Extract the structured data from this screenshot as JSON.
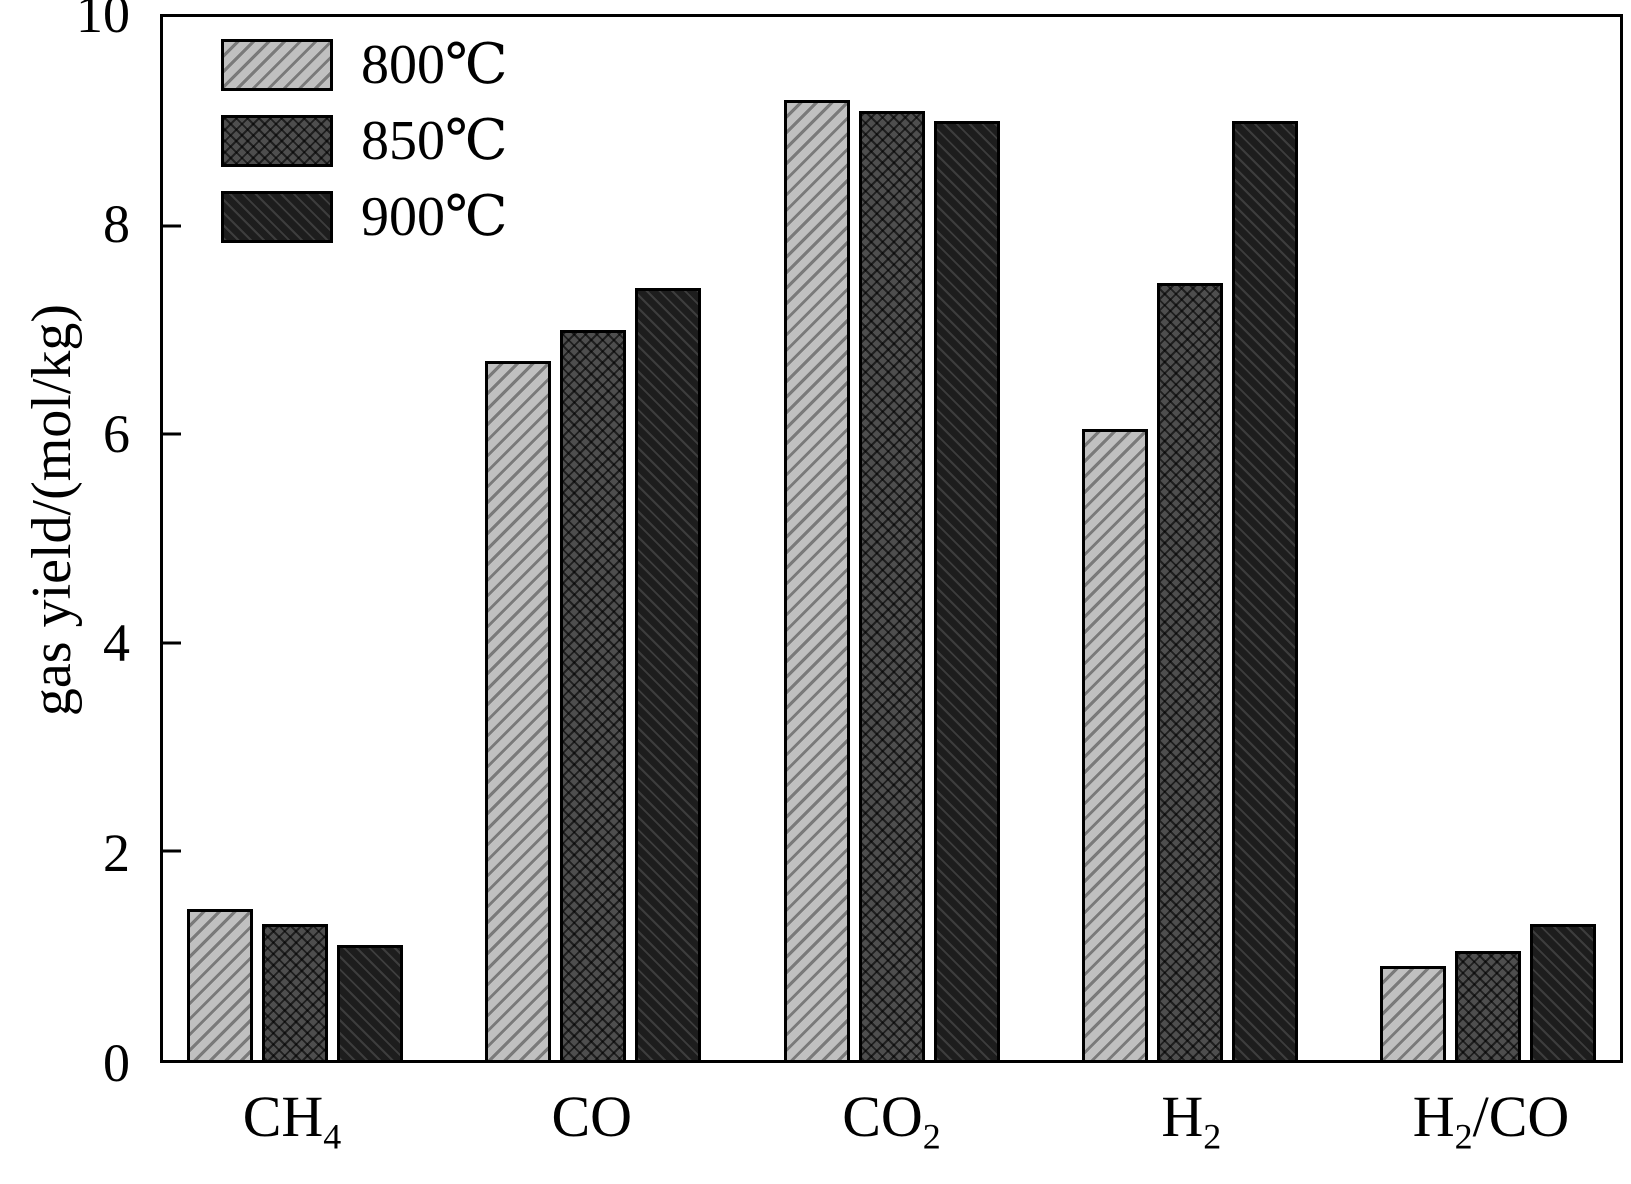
{
  "chart_data": {
    "type": "bar",
    "title": "",
    "xlabel": "",
    "ylabel": "gas yield/(mol/kg)",
    "ylim": [
      0,
      10
    ],
    "yticks": [
      0,
      2,
      4,
      6,
      8,
      10
    ],
    "grid": false,
    "legend_position": "top-left",
    "colors": {
      "series": [
        "#b9b9b9",
        "#4e4e4e",
        "#1d1d1d"
      ],
      "axis": "#000000",
      "background": "#ffffff"
    },
    "categories": [
      {
        "id": "ch4",
        "label": "CH4",
        "segments": [
          {
            "text": "CH"
          },
          {
            "text": "4",
            "sub": true
          }
        ]
      },
      {
        "id": "co",
        "label": "CO",
        "segments": [
          {
            "text": "CO"
          }
        ]
      },
      {
        "id": "co2",
        "label": "CO2",
        "segments": [
          {
            "text": "CO"
          },
          {
            "text": "2",
            "sub": true
          }
        ]
      },
      {
        "id": "h2",
        "label": "H2",
        "segments": [
          {
            "text": "H"
          },
          {
            "text": "2",
            "sub": true
          }
        ]
      },
      {
        "id": "h2co",
        "label": "H2/CO",
        "segments": [
          {
            "text": "H"
          },
          {
            "text": "2",
            "sub": true
          },
          {
            "text": "/CO"
          }
        ]
      }
    ],
    "series": [
      {
        "name": "800℃",
        "values": [
          1.45,
          6.7,
          9.2,
          6.05,
          0.9
        ]
      },
      {
        "name": "850℃",
        "values": [
          1.3,
          7.0,
          9.1,
          7.45,
          1.05
        ]
      },
      {
        "name": "900℃",
        "values": [
          1.1,
          7.4,
          9.0,
          9.0,
          1.3
        ]
      }
    ]
  }
}
